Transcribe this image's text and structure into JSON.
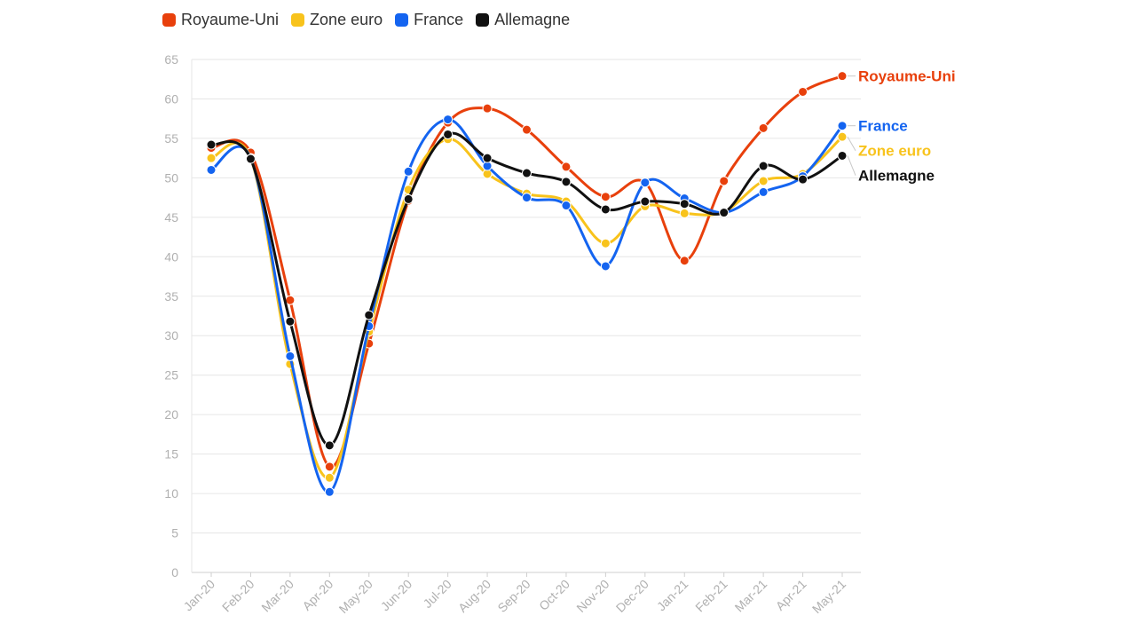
{
  "chart_data": {
    "type": "line",
    "categories": [
      "Jan-20",
      "Feb-20",
      "Mar-20",
      "Apr-20",
      "May-20",
      "Jun-20",
      "Jul-20",
      "Aug-20",
      "Sep-20",
      "Oct-20",
      "Nov-20",
      "Dec-20",
      "Jan-21",
      "Feb-21",
      "Mar-21",
      "Apr-21",
      "May-21"
    ],
    "y_ticks": [
      0,
      5,
      10,
      15,
      20,
      25,
      30,
      35,
      40,
      45,
      50,
      55,
      60,
      65
    ],
    "ylim": [
      0,
      65
    ],
    "grid": true,
    "legend_placement": "top-left",
    "end_labels": true,
    "series": [
      {
        "name": "Royaume-Uni",
        "color": "#e8400c",
        "values": [
          53.8,
          53.2,
          34.5,
          13.4,
          29.0,
          47.1,
          57.0,
          58.8,
          56.1,
          51.4,
          47.6,
          49.4,
          39.5,
          49.6,
          56.3,
          60.9,
          62.9
        ]
      },
      {
        "name": "Zone euro",
        "color": "#f8c31c",
        "values": [
          52.5,
          52.5,
          26.4,
          12.0,
          30.5,
          48.5,
          54.9,
          50.5,
          48.0,
          47.0,
          41.7,
          46.4,
          45.5,
          45.7,
          49.6,
          50.5,
          55.2
        ]
      },
      {
        "name": "France",
        "color": "#1464f0",
        "values": [
          51.0,
          52.5,
          27.4,
          10.2,
          31.2,
          50.8,
          57.4,
          51.5,
          47.5,
          46.5,
          38.8,
          49.4,
          47.4,
          45.6,
          48.2,
          50.2,
          56.6
        ]
      },
      {
        "name": "Allemagne",
        "color": "#111111",
        "values": [
          54.2,
          52.4,
          31.8,
          16.1,
          32.6,
          47.3,
          55.5,
          52.5,
          50.6,
          49.5,
          46.0,
          47.0,
          46.7,
          45.6,
          51.5,
          49.8,
          52.8
        ]
      }
    ]
  }
}
